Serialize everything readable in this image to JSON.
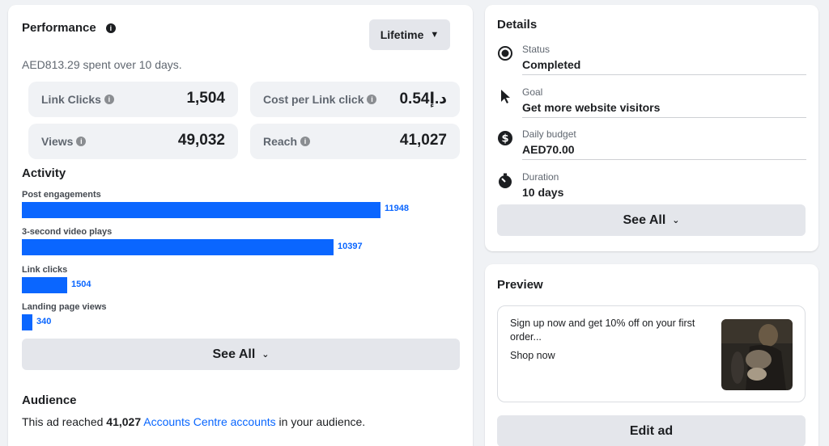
{
  "performance": {
    "title": "Performance",
    "period_button": "Lifetime",
    "spent_text": "AED813.29 spent over 10 days.",
    "metrics": [
      {
        "label": "Link Clicks",
        "value": "1,504"
      },
      {
        "label": "Cost per Link click",
        "value": "د.إ0.54"
      },
      {
        "label": "Views",
        "value": "49,032"
      },
      {
        "label": "Reach",
        "value": "41,027"
      }
    ]
  },
  "activity": {
    "title": "Activity",
    "items": [
      {
        "label": "Post engagements",
        "value": 11948,
        "value_text": "11948"
      },
      {
        "label": "3-second video plays",
        "value": 10397,
        "value_text": "10397"
      },
      {
        "label": "Link clicks",
        "value": 1504,
        "value_text": "1504"
      },
      {
        "label": "Landing page views",
        "value": 340,
        "value_text": "340"
      }
    ],
    "see_all": "See All"
  },
  "audience": {
    "title": "Audience",
    "prefix": "This ad reached ",
    "count": "41,027",
    "link": "Accounts Centre accounts",
    "suffix": " in your audience."
  },
  "details": {
    "title": "Details",
    "rows": [
      {
        "label": "Status",
        "value": "Completed",
        "icon": "radio-icon"
      },
      {
        "label": "Goal",
        "value": "Get more website visitors",
        "icon": "cursor-icon"
      },
      {
        "label": "Daily budget",
        "value": "AED70.00",
        "icon": "dollar-icon"
      },
      {
        "label": "Duration",
        "value": "10 days",
        "icon": "stopwatch-icon"
      }
    ],
    "see_all": "See All"
  },
  "preview": {
    "title": "Preview",
    "text": "Sign up now and get 10% off on your first order...",
    "cta": "Shop now",
    "edit_button": "Edit ad"
  },
  "colors": {
    "bar": "#0a66ff",
    "link": "#0866ff",
    "grey_button": "#e4e6eb"
  }
}
